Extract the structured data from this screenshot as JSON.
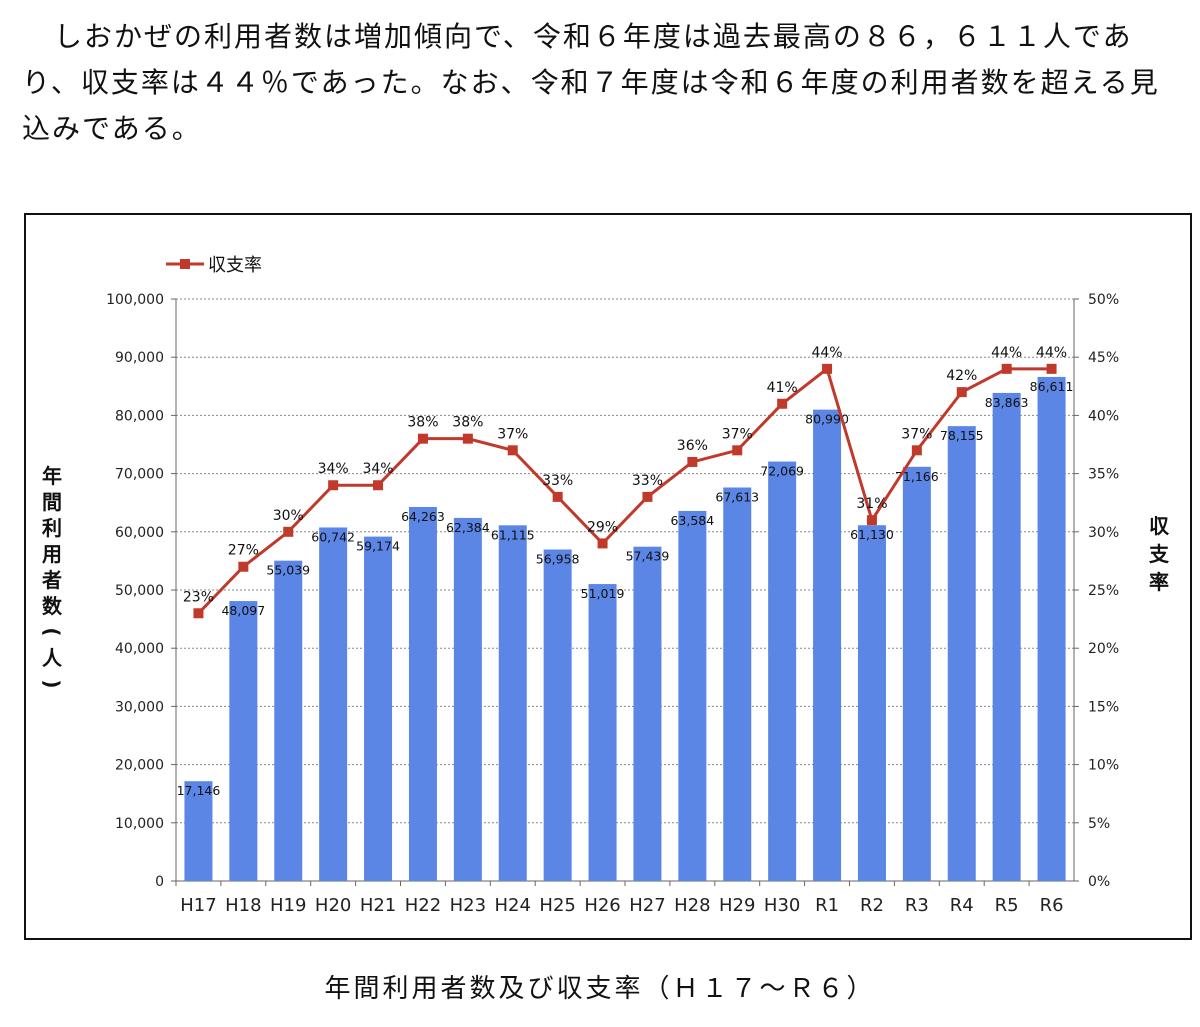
{
  "intro_text": "しおかぜの利用者数は増加傾向で、令和６年度は過去最高の８６，６１１人であり、収支率は４４％であった。なお、令和７年度は令和６年度の利用者数を超える見込みである。",
  "caption": "年間利用者数及び収支率（Ｈ１７～Ｒ６）",
  "chart_data": {
    "type": "bar",
    "categories": [
      "H17",
      "H18",
      "H19",
      "H20",
      "H21",
      "H22",
      "H23",
      "H24",
      "H25",
      "H26",
      "H27",
      "H28",
      "H29",
      "H30",
      "R1",
      "R2",
      "R3",
      "R4",
      "R5",
      "R6"
    ],
    "series": [
      {
        "type": "bar",
        "axis": "left",
        "values": [
          17146,
          48097,
          55039,
          60742,
          59174,
          64263,
          62384,
          61115,
          56958,
          51019,
          57439,
          63584,
          67613,
          72069,
          80990,
          61130,
          71166,
          78155,
          83863,
          86611
        ],
        "labels": [
          "17,146",
          "48,097",
          "55,039",
          "60,742",
          "59,174",
          "64,263",
          "62,384",
          "61,115",
          "56,958",
          "51,019",
          "57,439",
          "63,584",
          "67,613",
          "72,069",
          "80,990",
          "61,130",
          "71,166",
          "78,155",
          "83,863",
          "86,611"
        ],
        "color": "#5b86e5"
      },
      {
        "type": "line",
        "axis": "right",
        "name": "収支率",
        "values": [
          23,
          27,
          30,
          34,
          34,
          38,
          38,
          37,
          33,
          29,
          33,
          36,
          37,
          41,
          44,
          31,
          37,
          42,
          44,
          44
        ],
        "labels": [
          "23%",
          "27%",
          "30%",
          "34%",
          "34%",
          "38%",
          "38%",
          "37%",
          "33%",
          "29%",
          "33%",
          "36%",
          "37%",
          "41%",
          "44%",
          "31%",
          "37%",
          "42%",
          "44%",
          "44%"
        ],
        "color": "#c0392b"
      }
    ],
    "y_left": {
      "label": "年間利用者数(人)",
      "range": [
        0,
        100000
      ],
      "ticks": [
        "0",
        "10,000",
        "20,000",
        "30,000",
        "40,000",
        "50,000",
        "60,000",
        "70,000",
        "80,000",
        "90,000",
        "100,000"
      ]
    },
    "y_right": {
      "label": "収支率",
      "range": [
        0,
        50
      ],
      "ticks": [
        "0%",
        "5%",
        "10%",
        "15%",
        "20%",
        "25%",
        "30%",
        "35%",
        "40%",
        "45%",
        "50%"
      ]
    },
    "grid": true,
    "legend_position": "top-left"
  }
}
